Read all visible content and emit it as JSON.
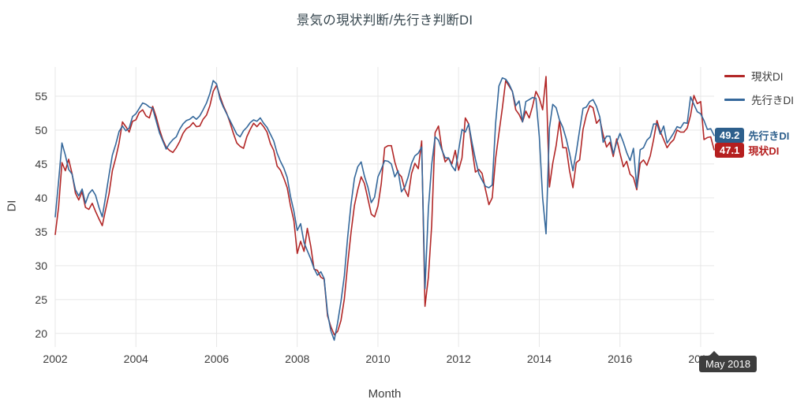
{
  "title": "景気の現状判断/先行き判断DI",
  "chart_data": {
    "type": "line",
    "title": "景気の現状判断/先行き判断DI",
    "xlabel": "Month",
    "ylabel": "DI",
    "x_start": "2002-01",
    "x_end": "2018-05",
    "xticks": [
      2002,
      2004,
      2006,
      2008,
      2010,
      2012,
      2014,
      2016,
      2018
    ],
    "yticks": [
      20,
      25,
      30,
      35,
      40,
      45,
      50,
      55
    ],
    "ylim": [
      18,
      59.3
    ],
    "grid": true,
    "legend_position": "top-right",
    "series": [
      {
        "name": "現状DI",
        "color": "#b22727",
        "values": [
          34.6,
          38.7,
          45.2,
          44.0,
          45.7,
          43.6,
          40.7,
          39.7,
          40.9,
          38.6,
          38.3,
          39.2,
          38.0,
          36.9,
          35.9,
          38.3,
          40.6,
          44.0,
          45.9,
          48.1,
          51.2,
          50.5,
          49.7,
          51.3,
          51.5,
          52.6,
          53.0,
          52.1,
          51.8,
          53.5,
          52.0,
          50.1,
          48.6,
          47.5,
          47.0,
          46.7,
          47.4,
          48.3,
          49.5,
          50.2,
          50.5,
          51.1,
          50.5,
          50.6,
          51.6,
          52.2,
          53.6,
          55.7,
          56.6,
          55.0,
          53.6,
          52.5,
          51.1,
          49.5,
          48.1,
          47.6,
          47.3,
          49.0,
          50.1,
          51.0,
          50.5,
          51.1,
          50.5,
          49.7,
          48.0,
          47.0,
          44.7,
          44.1,
          42.9,
          41.5,
          38.8,
          36.6,
          31.8,
          33.6,
          32.1,
          35.5,
          32.9,
          29.5,
          29.3,
          28.3,
          28.0,
          22.6,
          21.0,
          19.8,
          20.3,
          21.9,
          25.1,
          30.2,
          34.9,
          38.9,
          41.2,
          43.1,
          42.1,
          39.9,
          37.6,
          37.2,
          38.8,
          42.1,
          47.4,
          47.7,
          47.7,
          45.3,
          43.7,
          43.1,
          41.2,
          40.2,
          43.6,
          45.1,
          44.3,
          48.4,
          24.0,
          28.3,
          36.0,
          49.6,
          50.6,
          47.3,
          45.3,
          45.9,
          45.0,
          47.0,
          44.1,
          45.9,
          51.8,
          50.9,
          47.2,
          43.8,
          44.2,
          43.6,
          41.2,
          39.0,
          40.0,
          45.8,
          49.5,
          53.2,
          57.3,
          56.5,
          55.7,
          53.0,
          52.3,
          51.2,
          52.8,
          51.8,
          53.5,
          55.7,
          54.7,
          53.0,
          57.9,
          41.6,
          45.1,
          47.7,
          51.3,
          47.4,
          47.4,
          44.0,
          41.5,
          45.2,
          45.6,
          50.1,
          52.2,
          53.6,
          53.3,
          51.0,
          51.6,
          49.3,
          47.5,
          48.2,
          46.1,
          48.7,
          46.6,
          44.6,
          45.4,
          43.5,
          43.0,
          41.2,
          45.1,
          45.6,
          44.8,
          46.2,
          48.6,
          51.4,
          49.8,
          48.6,
          47.4,
          48.1,
          48.6,
          50.0,
          49.7,
          49.7,
          50.3,
          52.2,
          55.1,
          53.9,
          54.2,
          48.6,
          48.9,
          49.0,
          47.1
        ]
      },
      {
        "name": "先行きDI",
        "color": "#35689b",
        "values": [
          37.2,
          42.5,
          48.1,
          46.3,
          44.2,
          43.5,
          41.2,
          40.3,
          41.3,
          39.2,
          40.6,
          41.2,
          40.4,
          38.6,
          37.2,
          40.2,
          43.4,
          46.3,
          47.9,
          49.8,
          50.6,
          49.9,
          50.3,
          52.0,
          52.4,
          53.2,
          54.0,
          53.8,
          53.4,
          53.2,
          51.4,
          49.6,
          48.4,
          47.2,
          48.0,
          48.6,
          49.0,
          50.1,
          50.9,
          51.4,
          51.6,
          52.0,
          51.6,
          52.1,
          53.0,
          54.0,
          55.4,
          57.3,
          56.8,
          54.6,
          53.4,
          52.4,
          51.4,
          50.4,
          49.4,
          49.0,
          49.9,
          50.4,
          51.1,
          51.5,
          51.3,
          51.8,
          51.0,
          50.4,
          49.4,
          48.4,
          46.6,
          45.4,
          44.4,
          43.0,
          40.2,
          38.0,
          35.2,
          36.2,
          33.4,
          32.2,
          31.0,
          29.6,
          28.6,
          29.1,
          28.1,
          23.0,
          20.4,
          19.0,
          21.6,
          24.7,
          28.5,
          34.2,
          39.1,
          42.9,
          44.6,
          45.3,
          43.2,
          41.6,
          39.3,
          40.1,
          43.1,
          44.2,
          45.5,
          45.4,
          45.0,
          43.1,
          44.0,
          40.9,
          41.6,
          43.1,
          45.1,
          46.2,
          46.6,
          47.5,
          26.6,
          38.4,
          44.9,
          49.0,
          48.5,
          47.1,
          45.9,
          45.9,
          44.7,
          44.0,
          47.0,
          50.1,
          49.7,
          50.9,
          48.1,
          45.7,
          43.6,
          42.6,
          41.7,
          41.5,
          41.9,
          51.0,
          56.5,
          57.7,
          57.5,
          56.8,
          55.7,
          53.6,
          54.3,
          51.2,
          54.2,
          54.5,
          54.8,
          54.7,
          49.0,
          40.0,
          34.7,
          50.3,
          53.8,
          53.3,
          51.5,
          50.4,
          48.7,
          46.6,
          44.0,
          46.7,
          50.0,
          53.2,
          53.4,
          54.2,
          54.5,
          53.5,
          51.9,
          48.2,
          49.1,
          49.1,
          46.5,
          48.2,
          49.5,
          48.2,
          46.7,
          45.5,
          47.3,
          41.5,
          47.1,
          47.4,
          48.5,
          49.0,
          50.9,
          50.9,
          49.4,
          50.6,
          48.1,
          48.8,
          49.6,
          50.5,
          50.3,
          51.1,
          51.0,
          54.9,
          53.8,
          52.7,
          52.4,
          51.4,
          50.1,
          50.2,
          49.2
        ]
      }
    ]
  },
  "legend": {
    "items": [
      {
        "label": "現状DI",
        "color": "#b22727"
      },
      {
        "label": "先行きDI",
        "color": "#35689b"
      }
    ]
  },
  "end_labels": [
    {
      "value": "49.2",
      "label": "先行きDI",
      "color": "#2d5f8c"
    },
    {
      "value": "47.1",
      "label": "現状DI",
      "color": "#b51f1f"
    }
  ],
  "tooltip": {
    "text": "May 2018",
    "bg": "#3d3d3d"
  },
  "colors": {
    "grid": "#e7e7e7",
    "tick_text": "#3d3d3d",
    "title_text": "#37474f"
  }
}
